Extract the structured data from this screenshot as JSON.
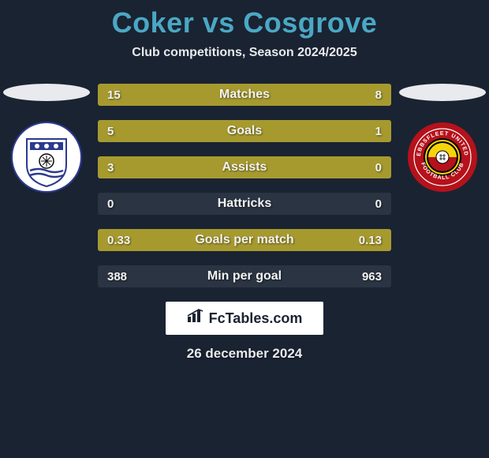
{
  "title": "Coker vs Cosgrove",
  "subtitle": "Club competitions, Season 2024/2025",
  "date": "26 december 2024",
  "footer_brand": "FcTables.com",
  "colors": {
    "background": "#1a2332",
    "title": "#4aa8c4",
    "pill": "#e8eaed",
    "bar_track": "#2a3442",
    "bar_fill": "#a69a2f",
    "text": "#f2f2f2"
  },
  "left_player": {
    "name": "Coker",
    "club_badge": {
      "bg": "#ffffff",
      "inner": "#2b3a8f",
      "accent": "#0a0a0a"
    }
  },
  "right_player": {
    "name": "Cosgrove",
    "club_badge": {
      "bg": "#b5121b",
      "inner": "#000000",
      "accent": "#f6d40c"
    }
  },
  "stats": [
    {
      "label": "Matches",
      "left_val": "15",
      "right_val": "8",
      "left_pct": 48,
      "right_pct": 52
    },
    {
      "label": "Goals",
      "left_val": "5",
      "right_val": "1",
      "left_pct": 76,
      "right_pct": 24
    },
    {
      "label": "Assists",
      "left_val": "3",
      "right_val": "0",
      "left_pct": 100,
      "right_pct": 0
    },
    {
      "label": "Hattricks",
      "left_val": "0",
      "right_val": "0",
      "left_pct": 0,
      "right_pct": 0
    },
    {
      "label": "Goals per match",
      "left_val": "0.33",
      "right_val": "0.13",
      "left_pct": 100,
      "right_pct": 0
    },
    {
      "label": "Min per goal",
      "left_val": "388",
      "right_val": "963",
      "left_pct": 0,
      "right_pct": 0
    }
  ]
}
